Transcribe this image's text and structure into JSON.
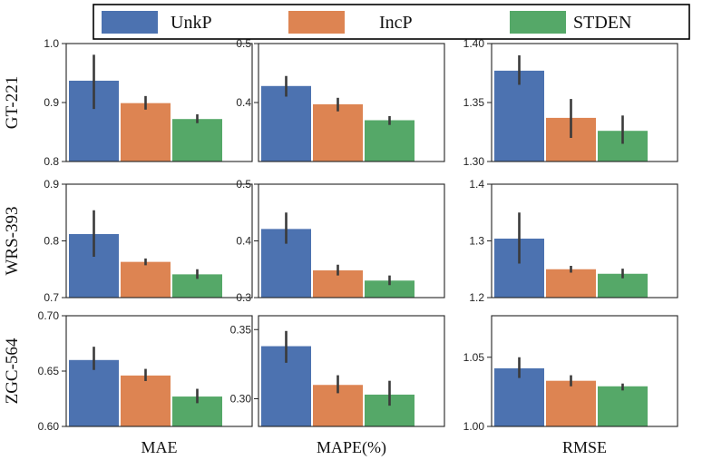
{
  "chart_data": {
    "type": "bar",
    "legend": {
      "placement": "top",
      "entries": [
        {
          "name": "UnkP",
          "color": "#4c72b0"
        },
        {
          "name": "IncP",
          "color": "#dd8452"
        },
        {
          "name": "STDEN",
          "color": "#55a868"
        }
      ]
    },
    "row_labels": [
      "GT-221",
      "WRS-393",
      "ZGC-564"
    ],
    "col_labels": [
      "MAE",
      "MAPE(%)",
      "RMSE"
    ],
    "grid": false,
    "panels": [
      {
        "row": 0,
        "col": 0,
        "ylim": [
          0.8,
          1.0
        ],
        "yticks": [
          0.8,
          0.9,
          1.0
        ],
        "tick_labels": [
          "0.8",
          "0.9",
          "1.0"
        ],
        "series": [
          {
            "name": "UnkP",
            "value": 0.937,
            "err": [
              0.889,
              0.981
            ]
          },
          {
            "name": "IncP",
            "value": 0.899,
            "err": [
              0.888,
              0.911
            ]
          },
          {
            "name": "STDEN",
            "value": 0.872,
            "err": [
              0.865,
              0.88
            ]
          }
        ]
      },
      {
        "row": 0,
        "col": 1,
        "ylim": [
          0.3,
          0.5
        ],
        "yticks": [
          0.4,
          0.5
        ],
        "tick_labels": [
          "0.4",
          "0.5"
        ],
        "series": [
          {
            "name": "UnkP",
            "value": 0.428,
            "err": [
              0.41,
              0.445
            ]
          },
          {
            "name": "IncP",
            "value": 0.397,
            "err": [
              0.385,
              0.408
            ]
          },
          {
            "name": "STDEN",
            "value": 0.37,
            "err": [
              0.362,
              0.377
            ]
          }
        ]
      },
      {
        "row": 0,
        "col": 2,
        "ylim": [
          1.3,
          1.4
        ],
        "yticks": [
          1.3,
          1.35,
          1.4
        ],
        "tick_labels": [
          "1.30",
          "1.35",
          "1.40"
        ],
        "series": [
          {
            "name": "UnkP",
            "value": 1.377,
            "err": [
              1.365,
              1.39
            ]
          },
          {
            "name": "IncP",
            "value": 1.337,
            "err": [
              1.32,
              1.353
            ]
          },
          {
            "name": "STDEN",
            "value": 1.326,
            "err": [
              1.315,
              1.339
            ]
          }
        ]
      },
      {
        "row": 1,
        "col": 0,
        "ylim": [
          0.7,
          0.9
        ],
        "yticks": [
          0.7,
          0.8,
          0.9
        ],
        "tick_labels": [
          "0.7",
          "0.8",
          "0.9"
        ],
        "series": [
          {
            "name": "UnkP",
            "value": 0.812,
            "err": [
              0.772,
              0.854
            ]
          },
          {
            "name": "IncP",
            "value": 0.763,
            "err": [
              0.757,
              0.769
            ]
          },
          {
            "name": "STDEN",
            "value": 0.741,
            "err": [
              0.733,
              0.75
            ]
          }
        ]
      },
      {
        "row": 1,
        "col": 1,
        "ylim": [
          0.3,
          0.5
        ],
        "yticks": [
          0.3,
          0.4,
          0.5
        ],
        "tick_labels": [
          "0.3",
          "0.4",
          "0.5"
        ],
        "series": [
          {
            "name": "UnkP",
            "value": 0.421,
            "err": [
              0.395,
              0.45
            ]
          },
          {
            "name": "IncP",
            "value": 0.348,
            "err": [
              0.339,
              0.358
            ]
          },
          {
            "name": "STDEN",
            "value": 0.33,
            "err": [
              0.322,
              0.339
            ]
          }
        ]
      },
      {
        "row": 1,
        "col": 2,
        "ylim": [
          1.2,
          1.4
        ],
        "yticks": [
          1.2,
          1.3,
          1.4
        ],
        "tick_labels": [
          "1.2",
          "1.3",
          "1.4"
        ],
        "series": [
          {
            "name": "UnkP",
            "value": 1.304,
            "err": [
              1.26,
              1.35
            ]
          },
          {
            "name": "IncP",
            "value": 1.25,
            "err": [
              1.244,
              1.256
            ]
          },
          {
            "name": "STDEN",
            "value": 1.242,
            "err": [
              1.234,
              1.251
            ]
          }
        ]
      },
      {
        "row": 2,
        "col": 0,
        "ylim": [
          0.6,
          0.7
        ],
        "yticks": [
          0.6,
          0.65,
          0.7
        ],
        "tick_labels": [
          "0.60",
          "0.65",
          "0.70"
        ],
        "series": [
          {
            "name": "UnkP",
            "value": 0.66,
            "err": [
              0.651,
              0.672
            ]
          },
          {
            "name": "IncP",
            "value": 0.646,
            "err": [
              0.641,
              0.652
            ]
          },
          {
            "name": "STDEN",
            "value": 0.627,
            "err": [
              0.621,
              0.634
            ]
          }
        ]
      },
      {
        "row": 2,
        "col": 1,
        "ylim": [
          0.28,
          0.36
        ],
        "yticks": [
          0.3,
          0.35
        ],
        "tick_labels": [
          "0.30",
          "0.35"
        ],
        "series": [
          {
            "name": "UnkP",
            "value": 0.338,
            "err": [
              0.326,
              0.349
            ]
          },
          {
            "name": "IncP",
            "value": 0.31,
            "err": [
              0.304,
              0.317
            ]
          },
          {
            "name": "STDEN",
            "value": 0.303,
            "err": [
              0.295,
              0.313
            ]
          }
        ]
      },
      {
        "row": 2,
        "col": 2,
        "ylim": [
          1.0,
          1.08
        ],
        "yticks": [
          1.0,
          1.05
        ],
        "tick_labels": [
          "1.00",
          "1.05"
        ],
        "series": [
          {
            "name": "UnkP",
            "value": 1.042,
            "err": [
              1.035,
              1.05
            ]
          },
          {
            "name": "IncP",
            "value": 1.033,
            "err": [
              1.029,
              1.037
            ]
          },
          {
            "name": "STDEN",
            "value": 1.029,
            "err": [
              1.026,
              1.031
            ]
          }
        ]
      }
    ]
  }
}
